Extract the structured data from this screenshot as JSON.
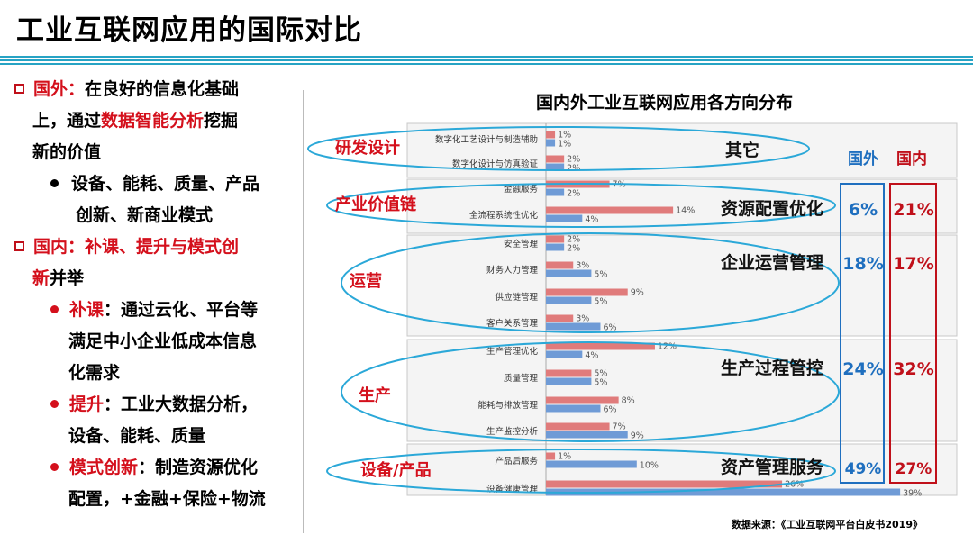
{
  "slide": {
    "title": "工业互联网应用的国际对比",
    "source": "数据来源：《工业互联网平台白皮书2019》"
  },
  "left_panel": {
    "foreign_label": "国外：",
    "foreign_text1": "在良好的信息化基础",
    "foreign_text2a": "上，通过",
    "foreign_highlight": "数据智能分析",
    "foreign_text2b": "挖掘",
    "foreign_text3": "新的价值",
    "foreign_bullet1": "设备、能耗、质量、产品",
    "foreign_bullet2": "创新、新商业模式",
    "domestic_label": "国内：补课、提升与模式创",
    "domestic_label2": "新",
    "domestic_text": "并举",
    "b1_label": "补课",
    "b1_text": "：通过云化、平台等",
    "b1_line2": "满足中小企业低成本信息",
    "b1_line3": "化需求",
    "b2_label": "提升",
    "b2_text": "：工业大数据分析，",
    "b2_line2": "设备、能耗、质量",
    "b3_label": "模式创新",
    "b3_text": "：制造资源优化",
    "b3_line2": "配置，+金融+保险+物流"
  },
  "colors": {
    "domestic_bar": "#e07b7b",
    "foreign_bar": "#6f9bd6",
    "ellipse": "#2ba8d8",
    "foreign_text": "#1f6fbf",
    "domestic_text": "#c0101a",
    "red_accent": "#d4101c"
  },
  "chart_data": {
    "type": "bar",
    "orientation": "horizontal",
    "title": "国内外工业互联网应用各方向分布",
    "unit": "%",
    "categories": [
      "数字化工艺设计与制造辅助",
      "数字化设计与仿真验证",
      "金融服务",
      "全流程系统性优化",
      "安全管理",
      "财务人力管理",
      "供应链管理",
      "客户关系管理",
      "生产管理优化",
      "质量管理",
      "能耗与排放管理",
      "生产监控分析",
      "产品后服务",
      "设备健康管理"
    ],
    "series": [
      {
        "name": "国内",
        "values": [
          1,
          2,
          7,
          14,
          2,
          3,
          9,
          3,
          12,
          5,
          8,
          7,
          1,
          26
        ]
      },
      {
        "name": "国外",
        "values": [
          1,
          2,
          2,
          4,
          2,
          5,
          5,
          6,
          4,
          5,
          6,
          9,
          10,
          39
        ]
      }
    ],
    "group_labels": [
      "研发设计",
      "产业价值链",
      "运营",
      "生产",
      "设备/产品"
    ],
    "summary_header": {
      "foreign": "国外",
      "domestic": "国内"
    },
    "summary": [
      {
        "label": "其它",
        "foreign": "",
        "domestic": ""
      },
      {
        "label": "资源配置优化",
        "foreign": "6%",
        "domestic": "21%"
      },
      {
        "label": "企业运营管理",
        "foreign": "18%",
        "domestic": "17%"
      },
      {
        "label": "生产过程管控",
        "foreign": "24%",
        "domestic": "32%"
      },
      {
        "label": "资产管理服务",
        "foreign": "49%",
        "domestic": "27%"
      }
    ]
  }
}
